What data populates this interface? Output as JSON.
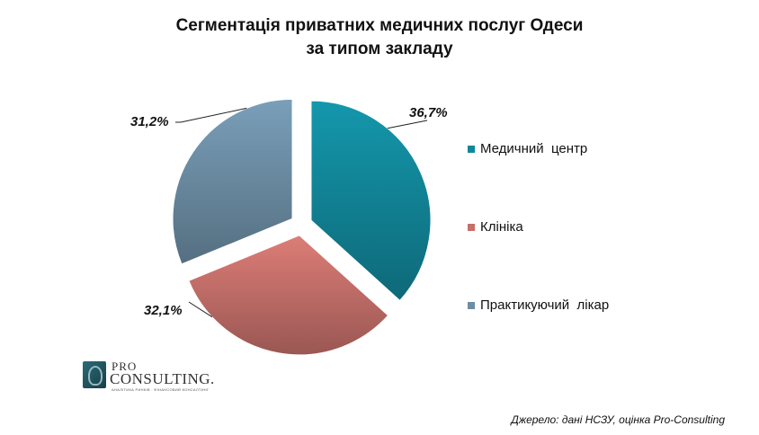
{
  "chart_data": {
    "type": "pie",
    "title": [
      "Сегментація приватних медичних послуг Одеси",
      "за типом закладу"
    ],
    "slices": [
      {
        "label": "Медичний  центр",
        "value": 36.7,
        "display": "36,7%",
        "color": "#12879a"
      },
      {
        "label": "Клініка",
        "value": 32.1,
        "display": "32,1%",
        "color": "#c5706a"
      },
      {
        "label": "Практикуючий  лікар",
        "value": 31.2,
        "display": "31,2%",
        "color": "#6d8ea5"
      }
    ],
    "legend_position": "right",
    "exploded": true
  },
  "logo": {
    "line1": "PRO",
    "line2": "CONSULTING.",
    "tagline": "АНАЛІТИКА РИНКІВ · ФІНАНСОВИЙ КОНСАЛТИНГ"
  },
  "source": "Джерело: дані НСЗУ, оцінка Pro-Consulting"
}
